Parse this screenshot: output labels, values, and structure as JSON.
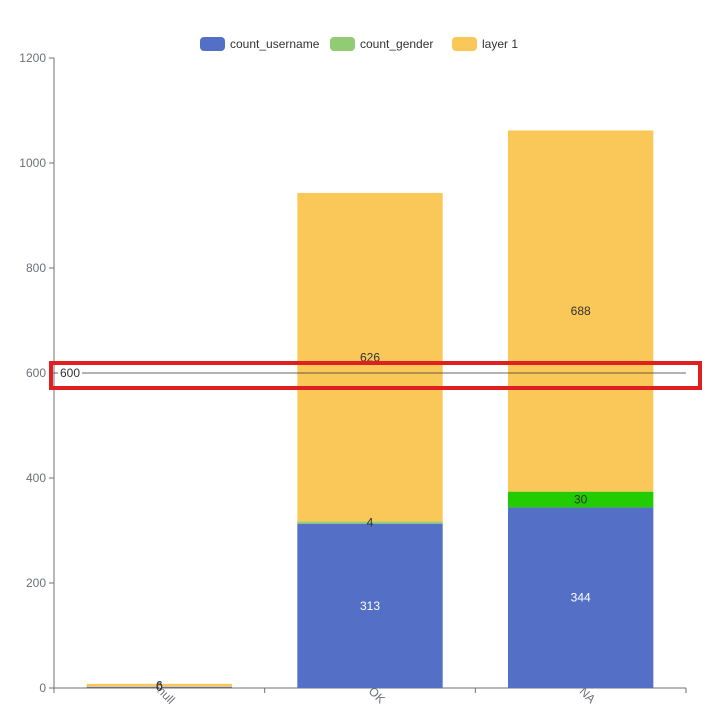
{
  "chart_data": {
    "type": "bar",
    "stacked": true,
    "categories": [
      "null",
      "OK",
      "NA"
    ],
    "series": [
      {
        "name": "count_username",
        "color": "#5470c6",
        "values": [
          2,
          313,
          344
        ]
      },
      {
        "name": "count_gender",
        "color": "#91cc75",
        "values": [
          0,
          4,
          30
        ],
        "value_colors": [
          "#91cc75",
          "#91cc75",
          "#22cc00"
        ]
      },
      {
        "name": "layer 1",
        "color": "#fac858",
        "values": [
          6,
          626,
          688
        ]
      }
    ],
    "ylim": [
      0,
      1200
    ],
    "yticks": [
      "0",
      "200",
      "400",
      "600",
      "800",
      "1000",
      "1200"
    ],
    "reference_line": {
      "value": 600,
      "label": "600"
    },
    "highlight": {
      "color": "#e02020"
    },
    "legend_position": "top-center",
    "xtick_rotation": "rotated",
    "grid": false
  }
}
